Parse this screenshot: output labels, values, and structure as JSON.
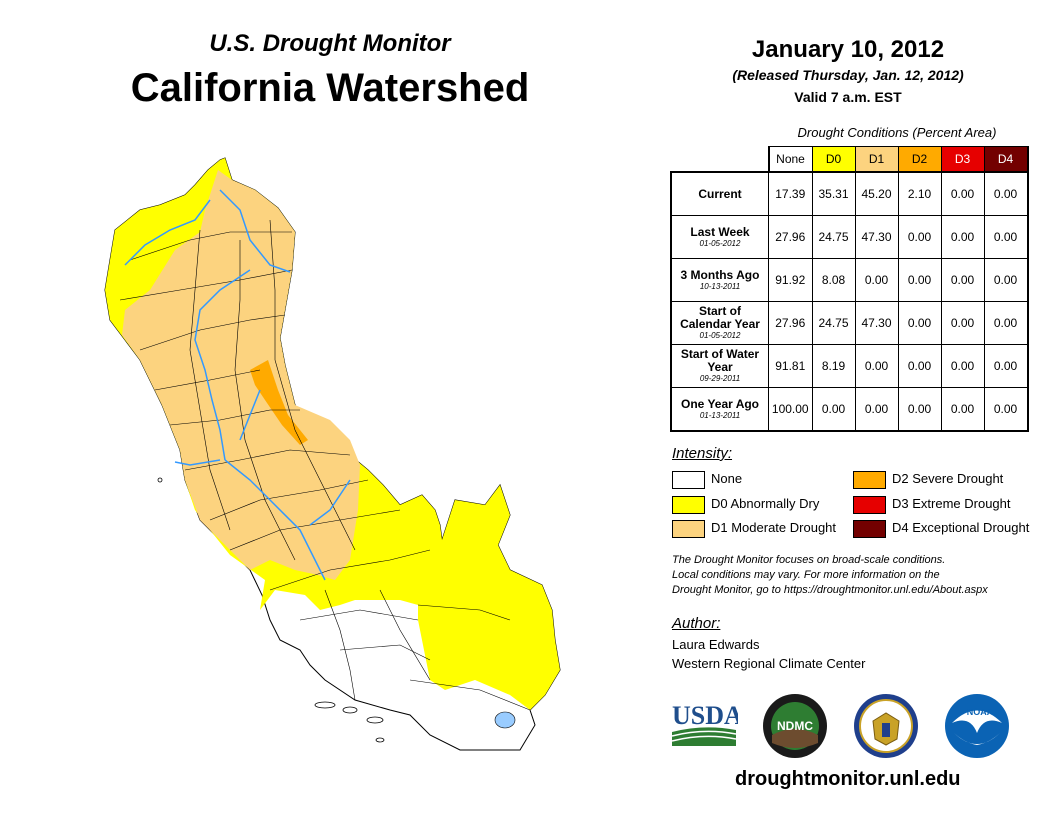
{
  "header": {
    "subtitle": "U.S. Drought Monitor",
    "title": "California Watershed",
    "date": "January 10, 2012",
    "released": "(Released Thursday, Jan. 12, 2012)",
    "valid": "Valid 7 a.m. EST"
  },
  "table": {
    "caption": "Drought Conditions (Percent Area)",
    "columns": [
      "None",
      "D0",
      "D1",
      "D2",
      "D3",
      "D4"
    ],
    "column_colors": [
      "#ffffff",
      "#ffff00",
      "#fcd37f",
      "#ffaa00",
      "#e60000",
      "#730000"
    ],
    "rows": [
      {
        "label": "Current",
        "sublabel": "",
        "values": [
          "17.39",
          "35.31",
          "45.20",
          "2.10",
          "0.00",
          "0.00"
        ]
      },
      {
        "label": "Last Week",
        "sublabel": "01-05-2012",
        "values": [
          "27.96",
          "24.75",
          "47.30",
          "0.00",
          "0.00",
          "0.00"
        ]
      },
      {
        "label": "3 Months Ago",
        "sublabel": "10-13-2011",
        "values": [
          "91.92",
          "8.08",
          "0.00",
          "0.00",
          "0.00",
          "0.00"
        ]
      },
      {
        "label": "Start of Calendar Year",
        "sublabel": "01-05-2012",
        "values": [
          "27.96",
          "24.75",
          "47.30",
          "0.00",
          "0.00",
          "0.00"
        ]
      },
      {
        "label": "Start of Water Year",
        "sublabel": "09-29-2011",
        "values": [
          "91.81",
          "8.19",
          "0.00",
          "0.00",
          "0.00",
          "0.00"
        ]
      },
      {
        "label": "One Year Ago",
        "sublabel": "01-13-2011",
        "values": [
          "100.00",
          "0.00",
          "0.00",
          "0.00",
          "0.00",
          "0.00"
        ]
      }
    ]
  },
  "legend": {
    "heading": "Intensity:",
    "items": [
      {
        "label": "None",
        "color": "#ffffff"
      },
      {
        "label": "D0 Abnormally Dry",
        "color": "#ffff00"
      },
      {
        "label": "D1 Moderate Drought",
        "color": "#fcd37f"
      },
      {
        "label": "D2 Severe Drought",
        "color": "#ffaa00"
      },
      {
        "label": "D3 Extreme Drought",
        "color": "#e60000"
      },
      {
        "label": "D4 Exceptional Drought",
        "color": "#730000"
      }
    ]
  },
  "note": {
    "line1": "The Drought Monitor focuses on broad-scale conditions.",
    "line2": "Local conditions may vary. For more information on the",
    "line3": "Drought Monitor, go to https://droughtmonitor.unl.edu/About.aspx"
  },
  "author": {
    "heading": "Author:",
    "name": "Laura Edwards",
    "org": "Western Regional Climate Center"
  },
  "logos": {
    "usda": "USDA",
    "ndmc": "NDMC",
    "noaa": "NOAA"
  },
  "website": "droughtmonitor.unl.edu",
  "map_colors": {
    "none": "#ffffff",
    "d0": "#ffff00",
    "d1": "#fcd37f",
    "d2": "#ffaa00",
    "river": "#3399ff"
  }
}
